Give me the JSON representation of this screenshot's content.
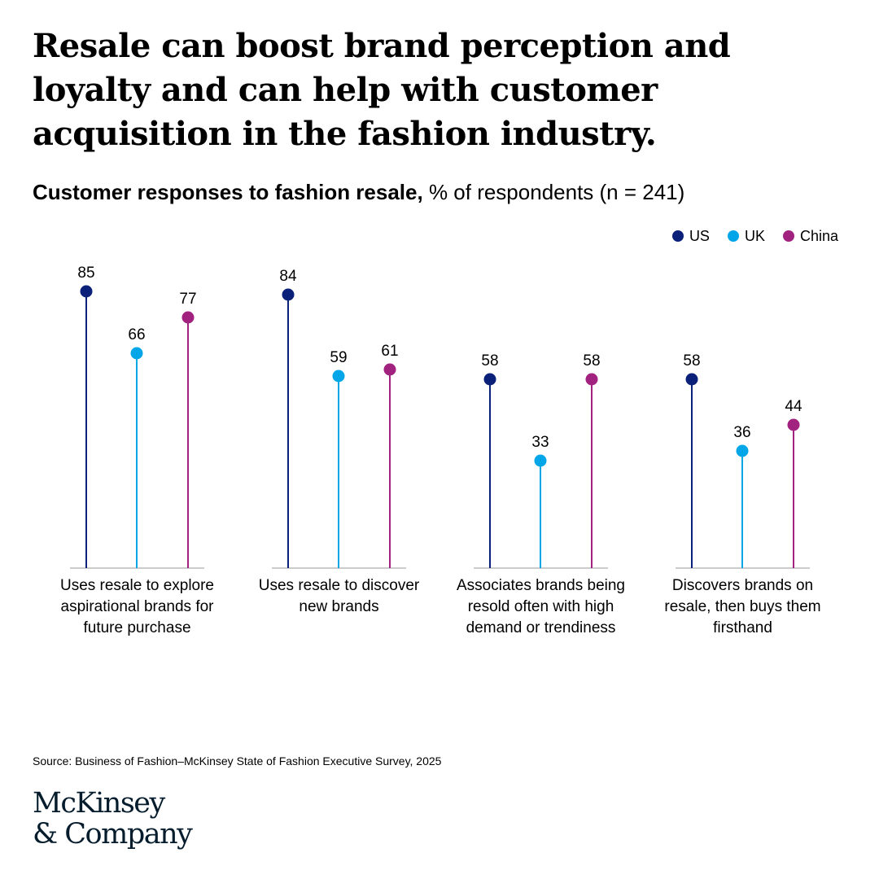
{
  "headline": "Resale can boost brand perception and loyalty and can help with customer acquisition in the fashion industry.",
  "subtitle": {
    "bold": "Customer responses to fashion resale,",
    "regular": " % of respondents (n = 241)"
  },
  "legend": [
    {
      "label": "US",
      "color": "#0b2079"
    },
    {
      "label": "UK",
      "color": "#00a6e8"
    },
    {
      "label": "China",
      "color": "#a1237f"
    }
  ],
  "chart_data": {
    "type": "lollipop",
    "categories": [
      "Uses resale to explore aspirational brands for future purchase",
      "Uses resale to discover new brands",
      "Associates brands being resold often with high demand or trendiness",
      "Discovers brands on resale, then buys them firsthand"
    ],
    "series": [
      {
        "name": "US",
        "color": "#0b2079",
        "values": [
          85,
          84,
          58,
          58
        ]
      },
      {
        "name": "UK",
        "color": "#00a6e8",
        "values": [
          66,
          59,
          33,
          36
        ]
      },
      {
        "name": "China",
        "color": "#a1237f",
        "values": [
          77,
          61,
          58,
          44
        ]
      }
    ],
    "ylim": [
      0,
      100
    ],
    "axis_color": "#cccccc"
  },
  "source": "Source: Business of Fashion–McKinsey State of Fashion Executive Survey, 2025",
  "logo": {
    "line1": "McKinsey",
    "line2": "& Company"
  }
}
